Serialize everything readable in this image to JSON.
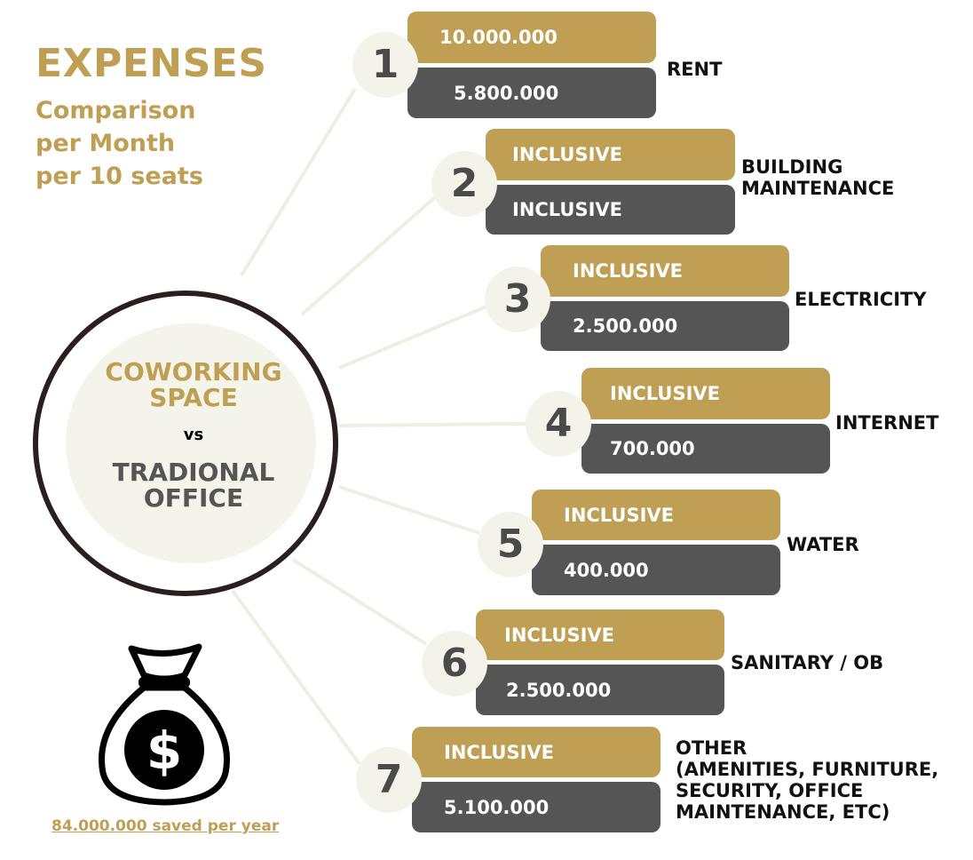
{
  "header": {
    "title": "EXPENSES",
    "subtitle_lines": [
      "Comparison",
      "per Month",
      "per 10 seats"
    ]
  },
  "center": {
    "line1": "COWORKING",
    "line2": "SPACE",
    "vs": "vs",
    "line3": "TRADIONAL",
    "line4": "OFFICE"
  },
  "colors": {
    "gold": "#bf9f53",
    "dark": "#555555",
    "cream": "#f4f3ea",
    "ring": "#2b1e1e"
  },
  "items": [
    {
      "number": "1",
      "coworking": "10.000.000",
      "traditional": "5.800.000",
      "label_lines": [
        "RENT"
      ]
    },
    {
      "number": "2",
      "coworking": "INCLUSIVE",
      "traditional": "INCLUSIVE",
      "label_lines": [
        "BUILDING",
        "MAINTENANCE"
      ]
    },
    {
      "number": "3",
      "coworking": "INCLUSIVE",
      "traditional": "2.500.000",
      "label_lines": [
        "ELECTRICITY"
      ]
    },
    {
      "number": "4",
      "coworking": "INCLUSIVE",
      "traditional": "700.000",
      "label_lines": [
        "INTERNET"
      ]
    },
    {
      "number": "5",
      "coworking": "INCLUSIVE",
      "traditional": "400.000",
      "label_lines": [
        "WATER"
      ]
    },
    {
      "number": "6",
      "coworking": "INCLUSIVE",
      "traditional": "2.500.000",
      "label_lines": [
        "SANITARY / OB"
      ]
    },
    {
      "number": "7",
      "coworking": "INCLUSIVE",
      "traditional": "5.100.000",
      "label_lines": [
        "OTHER",
        "(AMENITIES, FURNITURE,",
        "SECURITY, OFFICE",
        "MAINTENANCE, ETC)"
      ]
    }
  ],
  "footer": {
    "savings": "84.000.000 saved per year",
    "bag_icon": "money-bag-icon",
    "currency_symbol": "$"
  }
}
